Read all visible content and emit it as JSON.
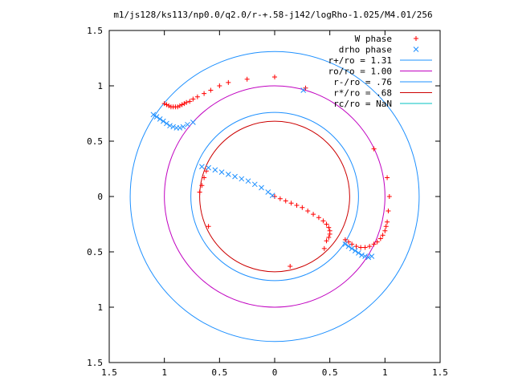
{
  "chart_data": {
    "type": "scatter",
    "title": "m1/js128/ks113/np0.0/q2.0/r-+.58-j142/logRho-1.025/M4.01/256",
    "xlim": [
      -1.5,
      1.5
    ],
    "ylim": [
      -1.5,
      1.5
    ],
    "xticks": [
      -1.5,
      -1,
      -0.5,
      0,
      0.5,
      1,
      1.5
    ],
    "xtick_labels": [
      "1.5",
      "1",
      "0.5",
      "0",
      "0.5",
      "1",
      "1.5"
    ],
    "yticks": [
      1.5,
      1,
      0.5,
      0,
      -0.5,
      -1,
      -1.5
    ],
    "ytick_labels": [
      "1.5",
      "1",
      "0.5",
      "0",
      "0.5",
      "1",
      "1.5"
    ],
    "grid": false,
    "legend_position": "top-right",
    "series": [
      {
        "name": "W phase",
        "marker": "plus",
        "color": "#ff0000",
        "points": [
          [
            -1.0,
            0.84
          ],
          [
            -0.98,
            0.83
          ],
          [
            -0.96,
            0.82
          ],
          [
            -0.94,
            0.81
          ],
          [
            -0.92,
            0.81
          ],
          [
            -0.9,
            0.81
          ],
          [
            -0.88,
            0.81
          ],
          [
            -0.86,
            0.82
          ],
          [
            -0.84,
            0.83
          ],
          [
            -0.82,
            0.84
          ],
          [
            -0.8,
            0.85
          ],
          [
            -0.77,
            0.86
          ],
          [
            -0.74,
            0.88
          ],
          [
            -0.7,
            0.9
          ],
          [
            -0.64,
            0.93
          ],
          [
            -0.58,
            0.96
          ],
          [
            -0.5,
            1.0
          ],
          [
            -0.42,
            1.03
          ],
          [
            -0.25,
            1.06
          ],
          [
            0.0,
            1.08
          ],
          [
            0.28,
            0.98
          ],
          [
            0.9,
            0.43
          ],
          [
            1.02,
            0.17
          ],
          [
            1.04,
            0.0
          ],
          [
            1.03,
            -0.13
          ],
          [
            1.02,
            -0.23
          ],
          [
            1.01,
            -0.27
          ],
          [
            1.0,
            -0.31
          ],
          [
            0.98,
            -0.35
          ],
          [
            0.96,
            -0.38
          ],
          [
            0.93,
            -0.41
          ],
          [
            0.9,
            -0.43
          ],
          [
            0.86,
            -0.45
          ],
          [
            0.82,
            -0.46
          ],
          [
            0.78,
            -0.46
          ],
          [
            0.74,
            -0.45
          ],
          [
            0.7,
            -0.43
          ],
          [
            0.67,
            -0.41
          ],
          [
            0.64,
            -0.39
          ],
          [
            0.0,
            0.0
          ],
          [
            0.05,
            -0.02
          ],
          [
            0.1,
            -0.04
          ],
          [
            0.15,
            -0.06
          ],
          [
            0.2,
            -0.08
          ],
          [
            0.25,
            -0.1
          ],
          [
            0.3,
            -0.13
          ],
          [
            0.35,
            -0.16
          ],
          [
            0.4,
            -0.19
          ],
          [
            0.44,
            -0.22
          ],
          [
            0.47,
            -0.25
          ],
          [
            0.49,
            -0.28
          ],
          [
            0.5,
            -0.31
          ],
          [
            0.5,
            -0.34
          ],
          [
            0.49,
            -0.37
          ],
          [
            0.47,
            -0.4
          ],
          [
            0.45,
            -0.47
          ],
          [
            0.14,
            -0.63
          ],
          [
            -0.62,
            0.23
          ],
          [
            -0.64,
            0.17
          ],
          [
            -0.66,
            0.1
          ],
          [
            -0.68,
            0.04
          ],
          [
            -0.6,
            -0.27
          ]
        ]
      },
      {
        "name": "drho phase",
        "marker": "x",
        "color": "#1e90ff",
        "points": [
          [
            -1.1,
            0.74
          ],
          [
            -1.07,
            0.72
          ],
          [
            -1.04,
            0.7
          ],
          [
            -1.01,
            0.68
          ],
          [
            -0.98,
            0.66
          ],
          [
            -0.95,
            0.64
          ],
          [
            -0.92,
            0.63
          ],
          [
            -0.89,
            0.62
          ],
          [
            -0.86,
            0.62
          ],
          [
            -0.83,
            0.63
          ],
          [
            -0.79,
            0.65
          ],
          [
            -0.74,
            0.67
          ],
          [
            -0.66,
            0.27
          ],
          [
            -0.6,
            0.26
          ],
          [
            -0.54,
            0.24
          ],
          [
            -0.48,
            0.22
          ],
          [
            -0.42,
            0.2
          ],
          [
            -0.36,
            0.18
          ],
          [
            -0.3,
            0.16
          ],
          [
            -0.24,
            0.14
          ],
          [
            -0.18,
            0.11
          ],
          [
            -0.12,
            0.08
          ],
          [
            -0.06,
            0.04
          ],
          [
            -0.02,
            0.01
          ],
          [
            0.64,
            -0.43
          ],
          [
            0.67,
            -0.45
          ],
          [
            0.7,
            -0.47
          ],
          [
            0.73,
            -0.49
          ],
          [
            0.76,
            -0.51
          ],
          [
            0.79,
            -0.53
          ],
          [
            0.82,
            -0.54
          ],
          [
            0.85,
            -0.55
          ],
          [
            0.88,
            -0.54
          ],
          [
            0.26,
            0.96
          ]
        ]
      }
    ],
    "circles": [
      {
        "name": "r+/ro = 1.31",
        "r": 1.31,
        "color": "#1e90ff"
      },
      {
        "name": "ro/ro = 1.00",
        "r": 1.0,
        "color": "#c000c0"
      },
      {
        "name": "r-/ro = .76",
        "r": 0.76,
        "color": "#1e90ff"
      },
      {
        "name": "r*/ro = .68",
        "r": 0.68,
        "color": "#cc0000"
      },
      {
        "name": "rc/ro = NaN",
        "r": null,
        "color": "#00c0c0"
      }
    ]
  }
}
